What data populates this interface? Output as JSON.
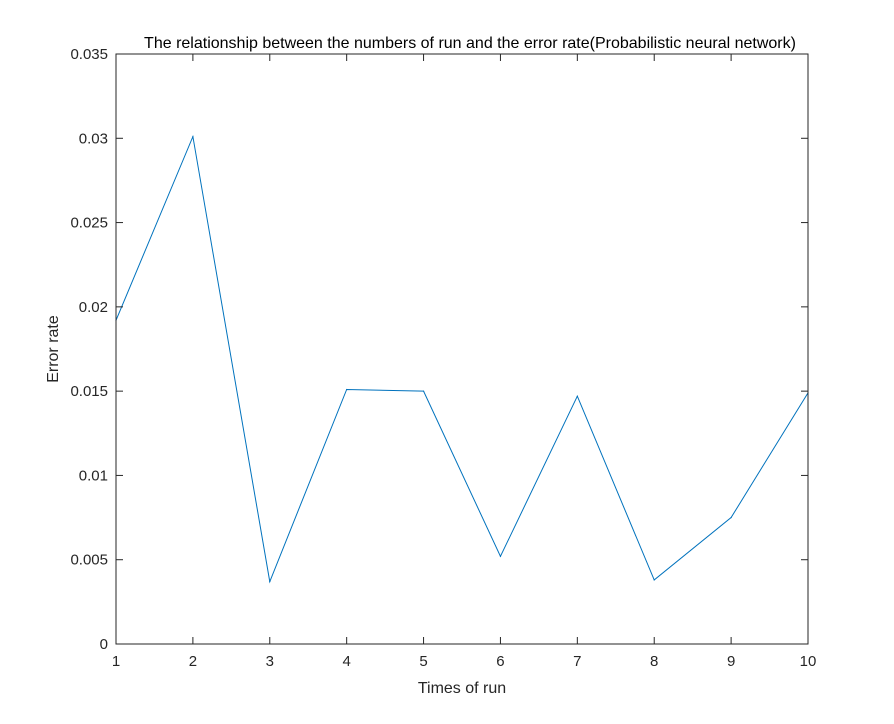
{
  "chart_data": {
    "type": "line",
    "title": "The relationship between the numbers of run and the error rate(Probabilistic neural network)",
    "xlabel": "Times of run",
    "ylabel": "Error rate",
    "xlim": [
      1,
      10
    ],
    "ylim": [
      0,
      0.035
    ],
    "xticks": [
      1,
      2,
      3,
      4,
      5,
      6,
      7,
      8,
      9,
      10
    ],
    "xtick_labels": [
      "1",
      "2",
      "3",
      "4",
      "5",
      "6",
      "7",
      "8",
      "9",
      "10"
    ],
    "yticks": [
      0,
      0.005,
      0.01,
      0.015,
      0.02,
      0.025,
      0.03,
      0.035
    ],
    "ytick_labels": [
      "0",
      "0.005",
      "0.01",
      "0.015",
      "0.02",
      "0.025",
      "0.03",
      "0.035"
    ],
    "grid": false,
    "series": [
      {
        "x": [
          1,
          2,
          3,
          4,
          5,
          6,
          7,
          8,
          9,
          10
        ],
        "values": [
          0.0192,
          0.0301,
          0.0037,
          0.0151,
          0.015,
          0.0052,
          0.0147,
          0.0038,
          0.0075,
          0.0149
        ],
        "color": "#0072BD"
      }
    ]
  }
}
